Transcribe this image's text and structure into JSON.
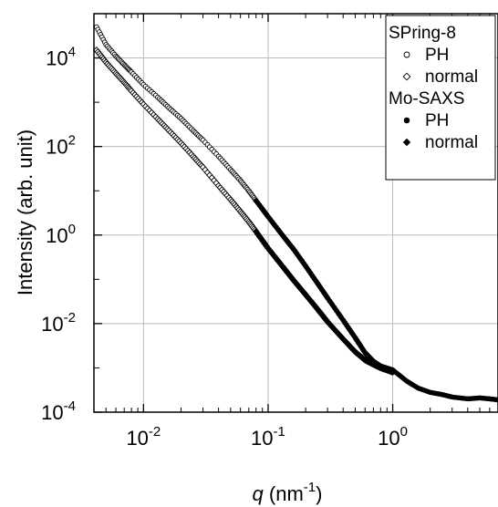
{
  "chart_data": {
    "type": "scatter",
    "title": "",
    "xlabel_var": "q",
    "xlabel_unit": " (nm",
    "xlabel_exp": "-1",
    "xlabel_close": ")",
    "ylabel": "Intensity (arb. unit)",
    "x_scale": "log",
    "y_scale": "log",
    "xlim": [
      0.004,
      7.0
    ],
    "ylim": [
      0.0001,
      100000
    ],
    "grid": true,
    "x_ticks": [
      {
        "value": 0.01,
        "base": "10",
        "exp": "-2"
      },
      {
        "value": 0.1,
        "base": "10",
        "exp": "-1"
      },
      {
        "value": 1,
        "base": "10",
        "exp": "0"
      }
    ],
    "y_ticks": [
      {
        "value": 0.0001,
        "base": "10",
        "exp": "-4"
      },
      {
        "value": 0.01,
        "base": "10",
        "exp": "-2"
      },
      {
        "value": 1,
        "base": "10",
        "exp": "0"
      },
      {
        "value": 100,
        "base": "10",
        "exp": "2"
      },
      {
        "value": 10000,
        "base": "10",
        "exp": "4"
      }
    ],
    "legend": {
      "placement": "top-right",
      "groups": [
        {
          "title": "SPring-8",
          "entries": [
            {
              "label": "PH",
              "marker": "open-circle",
              "series": 0
            },
            {
              "label": "normal",
              "marker": "open-diamond",
              "series": 1
            }
          ]
        },
        {
          "title": "Mo-SAXS",
          "entries": [
            {
              "label": "PH",
              "marker": "filled-circle",
              "series": 2
            },
            {
              "label": "normal",
              "marker": "filled-diamond",
              "series": 3
            }
          ]
        }
      ]
    },
    "series": [
      {
        "marker": "open-circle",
        "x": [
          0.0042,
          0.005,
          0.006,
          0.007,
          0.008,
          0.01,
          0.013,
          0.016,
          0.02,
          0.025,
          0.03,
          0.04,
          0.05,
          0.06,
          0.07,
          0.08,
          0.1,
          0.13,
          0.16,
          0.2,
          0.25,
          0.3,
          0.4,
          0.5,
          0.6,
          0.7,
          0.8,
          1.0
        ],
        "y": [
          50000,
          20000,
          11000,
          7000,
          4800,
          2500,
          1300,
          750,
          430,
          230,
          140,
          60,
          30,
          17,
          10,
          6,
          2.6,
          1.0,
          0.48,
          0.2,
          0.08,
          0.038,
          0.012,
          0.0048,
          0.0022,
          0.0014,
          0.0011,
          0.0009
        ]
      },
      {
        "marker": "open-diamond",
        "x": [
          0.0042,
          0.005,
          0.006,
          0.007,
          0.008,
          0.01,
          0.013,
          0.016,
          0.02,
          0.025,
          0.03,
          0.04,
          0.05,
          0.06,
          0.07,
          0.08,
          0.1,
          0.13,
          0.16,
          0.2,
          0.25,
          0.3,
          0.4,
          0.5,
          0.6,
          0.7,
          0.8,
          1.0
        ],
        "y": [
          15000,
          8000,
          4500,
          2800,
          1800,
          900,
          420,
          230,
          120,
          60,
          34,
          13,
          6.3,
          3.4,
          2.0,
          1.2,
          0.5,
          0.2,
          0.095,
          0.045,
          0.021,
          0.011,
          0.0045,
          0.0023,
          0.0015,
          0.0012,
          0.001,
          0.0008
        ]
      },
      {
        "marker": "filled-circle",
        "x": [
          0.08,
          0.1,
          0.13,
          0.16,
          0.2,
          0.25,
          0.3,
          0.4,
          0.5,
          0.6,
          0.7,
          0.8,
          1.0,
          1.3,
          1.6,
          2.0,
          2.5,
          3.0,
          4.0,
          5.0,
          6.0,
          7.0
        ],
        "y": [
          6.0,
          2.6,
          1.0,
          0.48,
          0.2,
          0.08,
          0.038,
          0.012,
          0.0048,
          0.0022,
          0.0014,
          0.0011,
          0.0009,
          0.0005,
          0.00035,
          0.00028,
          0.00025,
          0.00022,
          0.0002,
          0.00021,
          0.0002,
          0.00019
        ]
      },
      {
        "marker": "filled-diamond",
        "x": [
          0.08,
          0.1,
          0.13,
          0.16,
          0.2,
          0.25,
          0.3,
          0.4,
          0.5,
          0.6,
          0.7,
          0.8,
          1.0
        ],
        "y": [
          1.2,
          0.5,
          0.2,
          0.095,
          0.045,
          0.021,
          0.011,
          0.0045,
          0.0023,
          0.0015,
          0.0012,
          0.001,
          0.0008
        ]
      }
    ]
  }
}
